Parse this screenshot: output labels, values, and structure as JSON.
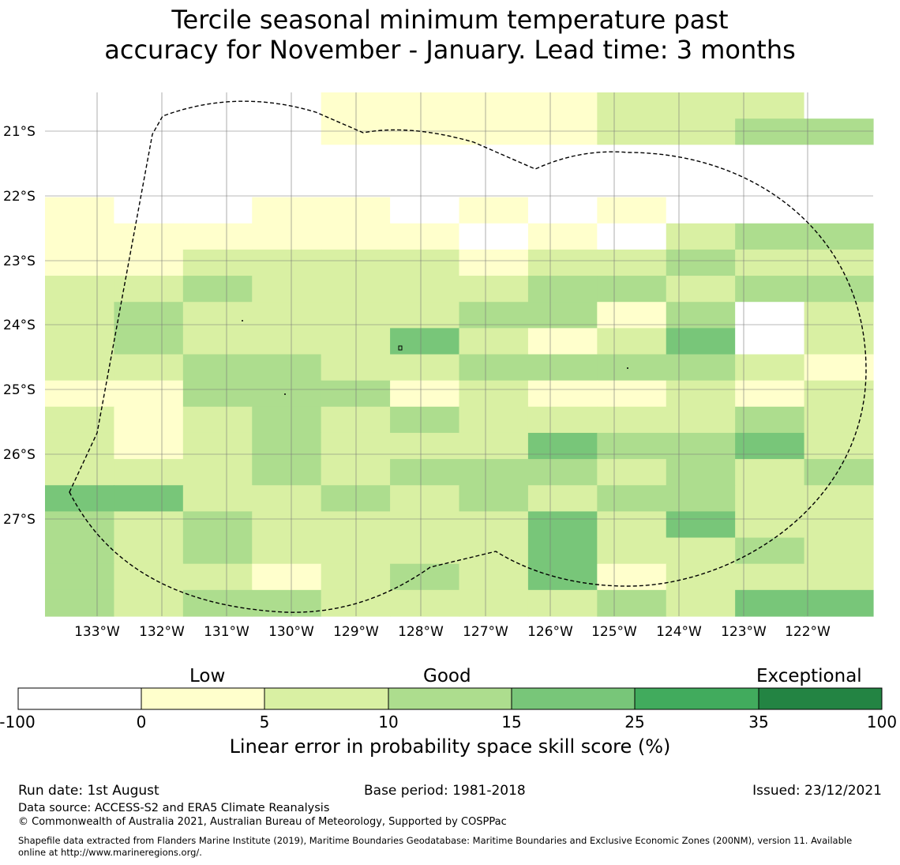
{
  "title": {
    "line1": "Tercile seasonal minimum temperature past",
    "line2": "accuracy for November - January. Lead time: 3 months"
  },
  "map": {
    "lat_labels": [
      "21°S",
      "22°S",
      "23°S",
      "24°S",
      "25°S",
      "26°S",
      "27°S"
    ],
    "lon_labels": [
      "133°W",
      "132°W",
      "131°W",
      "130°W",
      "129°W",
      "128°W",
      "127°W",
      "126°W",
      "125°W",
      "124°W",
      "123°W",
      "122°W"
    ],
    "palette": [
      "#ffffff",
      "#ffffcc",
      "#d9f0a3",
      "#addd8e",
      "#78c679",
      "#41ab5d",
      "#238443"
    ],
    "cell_classes": [
      "....11112220",
      "....11112233",
      "............",
      "............",
      "1..11.1.1...",
      "111111.1.233",
      "112222122322",
      "223222233233",
      "232222331302",
      "232224212402",
      "223322333321",
      "113331211212",
      "212323222232",
      "212322243342",
      "222323332323",
      "442232323322",
      "323222242422",
      "323222242232",
      "322123241222",
      "323322223244"
    ]
  },
  "colorbar": {
    "categories": [
      "Low",
      "Good",
      "Exceptional"
    ],
    "ticks": [
      "-100",
      "0",
      "5",
      "10",
      "15",
      "25",
      "35",
      "100"
    ],
    "colors": [
      "#ffffff",
      "#ffffcc",
      "#d9f0a3",
      "#addd8e",
      "#78c679",
      "#41ab5d",
      "#238443"
    ],
    "label": "Linear error in probability space skill score (%)"
  },
  "footer": {
    "run_date": "Run date: 1st August",
    "base_period": "Base period: 1981-2018",
    "issued": "Issued: 23/12/2021",
    "data_source": "Data source: ACCESS-S2 and ERA5 Climate Reanalysis",
    "copyright": "© Commonwealth of Australia 2021, Australian Bureau of Meteorology, Supported by COSPPac",
    "shapefile_line1": "Shapefile data extracted from Flanders Marine Institute (2019), Maritime Boundaries Geodatabase: Maritime Boundaries and Exclusive Economic Zones (200NM), version 11. Available",
    "shapefile_line2": "online at http://www.marineregions.org/."
  }
}
